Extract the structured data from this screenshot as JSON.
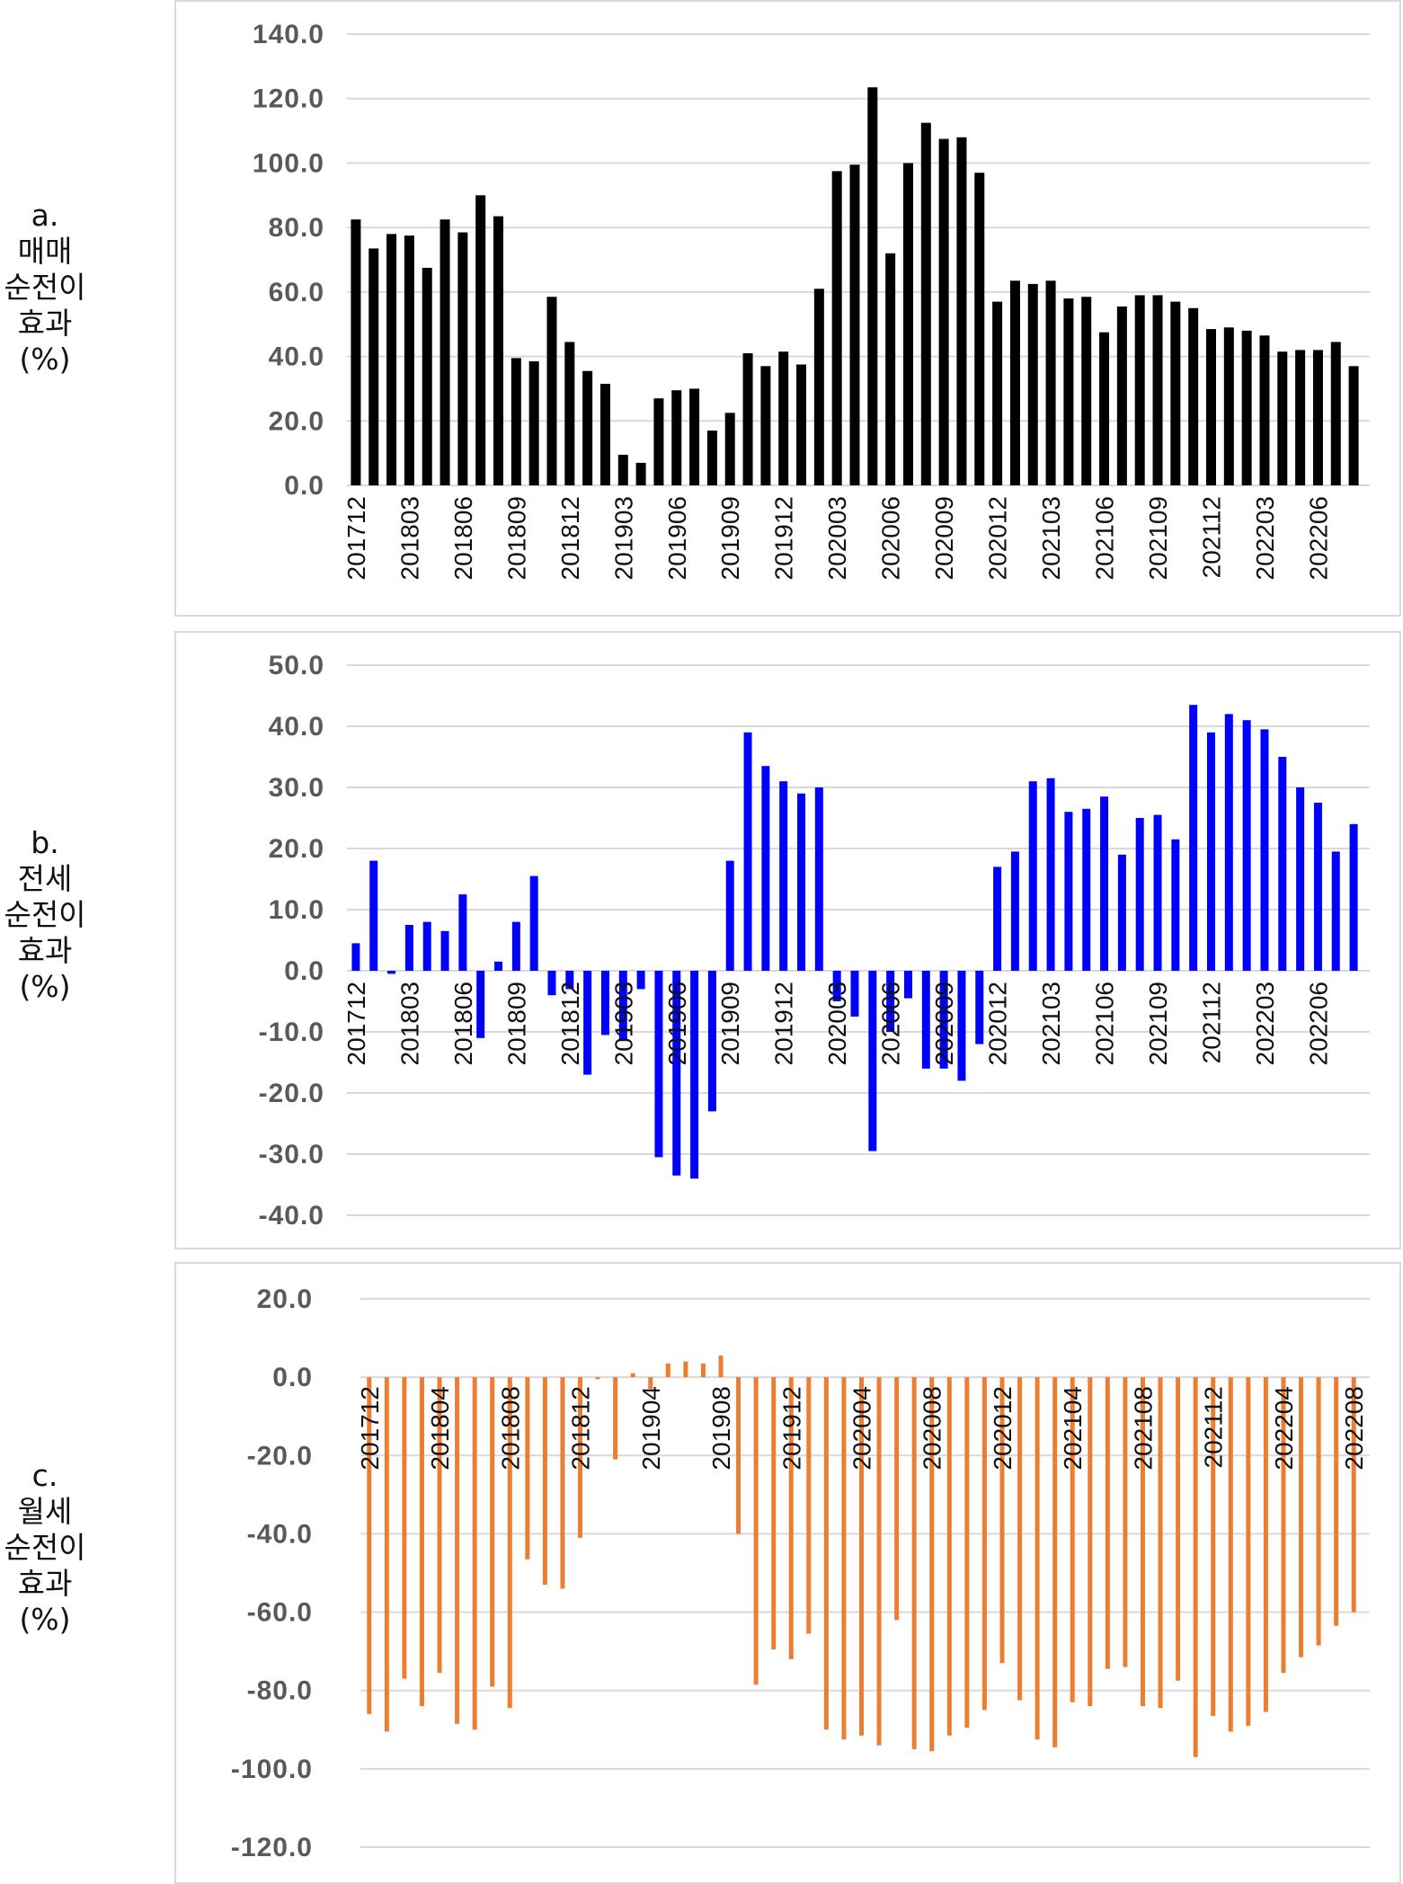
{
  "panels": [
    {
      "label_lines": [
        "a.",
        "매매",
        "순전이",
        "효과",
        "(%)"
      ],
      "chart_data": {
        "type": "bar",
        "color": "#000000",
        "ylim": [
          0,
          140
        ],
        "yticks": [
          "140.0",
          "120.0",
          "100.0",
          "80.0",
          "60.0",
          "40.0",
          "20.0",
          "0.0"
        ],
        "xtick_labels": [
          "201712",
          "201803",
          "201806",
          "201809",
          "201812",
          "201903",
          "201906",
          "201909",
          "201912",
          "202003",
          "202006",
          "202009",
          "202012",
          "202103",
          "202106",
          "202109",
          "202112",
          "202203",
          "202206"
        ],
        "x": [
          "201712",
          "201801",
          "201802",
          "201803",
          "201804",
          "201805",
          "201806",
          "201807",
          "201808",
          "201809",
          "201810",
          "201811",
          "201812",
          "201901",
          "201902",
          "201903",
          "201904",
          "201905",
          "201906",
          "201907",
          "201908",
          "201909",
          "201910",
          "201911",
          "201912",
          "202001",
          "202002",
          "202003",
          "202004",
          "202005",
          "202006",
          "202007",
          "202008",
          "202009",
          "202010",
          "202011",
          "202012",
          "202101",
          "202102",
          "202103",
          "202104",
          "202105",
          "202106",
          "202107",
          "202108",
          "202109",
          "202110",
          "202111",
          "202112",
          "202201",
          "202202",
          "202203",
          "202204",
          "202205",
          "202206",
          "202207",
          "202208"
        ],
        "values": [
          82.5,
          73.5,
          78,
          77.5,
          67.5,
          82.5,
          78.5,
          90,
          83.5,
          39.5,
          38.5,
          58.5,
          44.5,
          35.5,
          31.5,
          9.5,
          7,
          27,
          29.5,
          30,
          17,
          22.5,
          41,
          37,
          41.5,
          37.5,
          61,
          97.5,
          99.5,
          123.5,
          72,
          100,
          112.5,
          107.5,
          108,
          97,
          57,
          63.5,
          62.5,
          63.5,
          58,
          58.5,
          47.5,
          55.5,
          59,
          59,
          57,
          55,
          48.5,
          49,
          48,
          46.5,
          41.5,
          42,
          42,
          44.5,
          37
        ]
      }
    },
    {
      "label_lines": [
        "b.",
        "전세",
        "순전이",
        "효과",
        "(%)"
      ],
      "chart_data": {
        "type": "bar",
        "color": "#0000ff",
        "ylim": [
          -40,
          50
        ],
        "yticks": [
          "50.0",
          "40.0",
          "30.0",
          "20.0",
          "10.0",
          "0.0",
          "-10.0",
          "-20.0",
          "-30.0",
          "-40.0"
        ],
        "xtick_labels": [
          "201712",
          "201803",
          "201806",
          "201809",
          "201812",
          "201903",
          "201906",
          "201909",
          "201912",
          "202003",
          "202006",
          "202009",
          "202012",
          "202103",
          "202106",
          "202109",
          "202112",
          "202203",
          "202206"
        ],
        "x": [
          "201712",
          "201801",
          "201802",
          "201803",
          "201804",
          "201805",
          "201806",
          "201807",
          "201808",
          "201809",
          "201810",
          "201811",
          "201812",
          "201901",
          "201902",
          "201903",
          "201904",
          "201905",
          "201906",
          "201907",
          "201908",
          "201909",
          "201910",
          "201911",
          "201912",
          "202001",
          "202002",
          "202003",
          "202004",
          "202005",
          "202006",
          "202007",
          "202008",
          "202009",
          "202010",
          "202011",
          "202012",
          "202101",
          "202102",
          "202103",
          "202104",
          "202105",
          "202106",
          "202107",
          "202108",
          "202109",
          "202110",
          "202111",
          "202112",
          "202201",
          "202202",
          "202203",
          "202204",
          "202205",
          "202206",
          "202207",
          "202208"
        ],
        "values": [
          4.5,
          18,
          -0.5,
          7.5,
          8,
          6.5,
          12.5,
          -11,
          1.5,
          8,
          15.5,
          -4,
          -3,
          -17,
          -10.5,
          -11.5,
          -3,
          -30.5,
          -33.5,
          -34,
          -23,
          18,
          39,
          33.5,
          31,
          29,
          30,
          -5,
          -7.5,
          -29.5,
          -10,
          -4.5,
          -16,
          -16,
          -18,
          -12,
          17,
          19.5,
          31,
          31.5,
          26,
          26.5,
          28.5,
          19,
          25,
          25.5,
          21.5,
          43.5,
          39,
          42,
          41,
          39.5,
          35,
          30,
          27.5,
          19.5,
          24
        ]
      }
    },
    {
      "label_lines": [
        "c.",
        "월세",
        "순전이",
        "효과",
        "(%)"
      ],
      "chart_data": {
        "type": "bar",
        "color": "#ed7d31",
        "ylim": [
          -120,
          20
        ],
        "yticks": [
          "20.0",
          "0.0",
          "-20.0",
          "-40.0",
          "-60.0",
          "-80.0",
          "-100.0",
          "-120.0"
        ],
        "xtick_labels": [
          "201712",
          "201804",
          "201808",
          "201812",
          "201904",
          "201908",
          "201912",
          "202004",
          "202008",
          "202012",
          "202104",
          "202108",
          "202112",
          "202204",
          "202208"
        ],
        "x": [
          "201712",
          "201801",
          "201802",
          "201803",
          "201804",
          "201805",
          "201806",
          "201807",
          "201808",
          "201809",
          "201810",
          "201811",
          "201812",
          "201901",
          "201902",
          "201903",
          "201904",
          "201905",
          "201906",
          "201907",
          "201908",
          "201909",
          "201910",
          "201911",
          "201912",
          "202001",
          "202002",
          "202003",
          "202004",
          "202005",
          "202006",
          "202007",
          "202008",
          "202009",
          "202010",
          "202011",
          "202012",
          "202101",
          "202102",
          "202103",
          "202104",
          "202105",
          "202106",
          "202107",
          "202108",
          "202109",
          "202110",
          "202111",
          "202112",
          "202201",
          "202202",
          "202203",
          "202204",
          "202205",
          "202206",
          "202207",
          "202208"
        ],
        "values": [
          -86,
          -90.5,
          -77,
          -84,
          -75.5,
          -88.5,
          -90,
          -79,
          -84.5,
          -46.5,
          -53,
          -54,
          -41,
          -0.5,
          -21,
          1,
          -3,
          3.5,
          4,
          3.5,
          5.5,
          -40,
          -78.5,
          -69.5,
          -72,
          -65.5,
          -90,
          -92.5,
          -91.5,
          -94,
          -62,
          -95,
          -95.5,
          -91.5,
          -89.5,
          -85,
          -73,
          -82.5,
          -92.5,
          -94.5,
          -83,
          -84,
          -74.5,
          -74,
          -84,
          -84.5,
          -77.5,
          -97,
          -86.5,
          -90.5,
          -89,
          -85.5,
          -75.5,
          -71.5,
          -68.5,
          -63.5,
          -60
        ]
      }
    }
  ]
}
